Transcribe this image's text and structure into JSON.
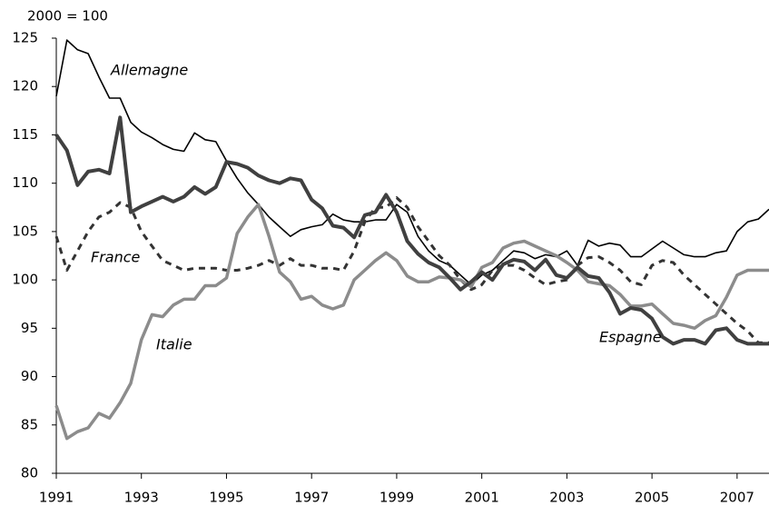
{
  "chart_data": {
    "type": "line",
    "subtitle": "2000 = 100",
    "x": [
      1991,
      1991.25,
      1991.5,
      1991.75,
      1992,
      1992.25,
      1992.5,
      1992.75,
      1993,
      1993.25,
      1993.5,
      1993.75,
      1994,
      1994.25,
      1994.5,
      1994.75,
      1995,
      1995.25,
      1995.5,
      1995.75,
      1996,
      1996.25,
      1996.5,
      1996.75,
      1997,
      1997.25,
      1997.5,
      1997.75,
      1998,
      1998.25,
      1998.5,
      1998.75,
      1999,
      1999.25,
      1999.5,
      1999.75,
      2000,
      2000.25,
      2000.5,
      2000.75,
      2001,
      2001.25,
      2001.5,
      2001.75,
      2002,
      2002.25,
      2002.5,
      2002.75,
      2003,
      2003.25,
      2003.5,
      2003.75,
      2004,
      2004.25,
      2004.5,
      2004.75,
      2005,
      2005.25,
      2005.5,
      2005.75,
      2006,
      2006.25,
      2006.5,
      2006.75,
      2007,
      2007.25,
      2007.5,
      2007.75
    ],
    "series": [
      {
        "name": "Allemagne",
        "color": "#000000",
        "width": 1.6,
        "dash": false,
        "values": [
          119,
          124.8,
          123.8,
          123.4,
          121,
          118.8,
          118.8,
          116.3,
          115.3,
          114.7,
          114,
          113.5,
          113.3,
          115.2,
          114.5,
          114.3,
          112.3,
          110.5,
          109,
          107.8,
          106.5,
          105.5,
          104.5,
          105.2,
          105.5,
          105.7,
          106.8,
          106.2,
          106,
          106,
          106.2,
          106.2,
          107.8,
          107,
          104.5,
          103,
          102,
          101.5,
          100.5,
          99.5,
          100.5,
          101,
          102,
          103,
          102.8,
          102.2,
          102.6,
          102.4,
          103,
          101.5,
          104.1,
          103.5,
          103.8,
          103.6,
          102.4,
          102.4,
          103.2,
          104,
          103.3,
          102.6,
          102.4,
          102.4,
          102.8,
          103,
          105,
          106,
          106.3,
          107.3
        ]
      },
      {
        "name": "France",
        "color": "#333333",
        "width": 3,
        "dash": true,
        "values": [
          104.5,
          101,
          103,
          105,
          106.5,
          107,
          108,
          107.5,
          105,
          103.5,
          102,
          101.5,
          101,
          101.2,
          101.2,
          101.2,
          101,
          101,
          101.2,
          101.5,
          102,
          101.5,
          102.2,
          101.5,
          101.5,
          101.2,
          101.2,
          101,
          103,
          106,
          107.5,
          107.5,
          108.5,
          107.5,
          105.5,
          104,
          102.5,
          101.5,
          100,
          99,
          99.5,
          101,
          101.5,
          101.5,
          101,
          100.2,
          99.5,
          99.8,
          100,
          101.5,
          102.3,
          102.4,
          101.8,
          101,
          99.8,
          99.5,
          101.5,
          102,
          101.8,
          100.5,
          99.5,
          98.5,
          97.5,
          96.5,
          95.5,
          94.7,
          93.5,
          93.5
        ]
      },
      {
        "name": "Italie",
        "color": "#8c8c8c",
        "width": 3.5,
        "dash": false,
        "values": [
          87,
          83.6,
          84.3,
          84.7,
          86.2,
          85.7,
          87.3,
          89.3,
          93.8,
          96.4,
          96.2,
          97.4,
          98,
          98,
          99.4,
          99.4,
          100.2,
          104.8,
          106.5,
          107.8,
          104.5,
          100.8,
          99.8,
          98,
          98.3,
          97.4,
          97,
          97.4,
          100,
          101,
          102,
          102.8,
          102,
          100.4,
          99.8,
          99.8,
          100.3,
          100.2,
          100,
          99.3,
          101.3,
          101.8,
          103.3,
          103.8,
          104,
          103.5,
          103,
          102.5,
          101.8,
          101,
          99.8,
          99.6,
          99.4,
          98.5,
          97.3,
          97.3,
          97.5,
          96.5,
          95.5,
          95.3,
          95,
          95.8,
          96.3,
          98.2,
          100.5,
          101,
          101,
          101
        ]
      },
      {
        "name": "Espagne",
        "color": "#404040",
        "width": 4,
        "dash": false,
        "values": [
          115,
          113.4,
          109.8,
          111.2,
          111.4,
          111,
          116.8,
          107,
          107.6,
          108.1,
          108.6,
          108.1,
          108.6,
          109.6,
          108.9,
          109.6,
          112.2,
          112,
          111.6,
          110.8,
          110.3,
          110,
          110.5,
          110.3,
          108.3,
          107.4,
          105.6,
          105.4,
          104.4,
          106.7,
          107,
          108.8,
          107,
          104,
          102.7,
          101.8,
          101.3,
          100.2,
          99,
          99.8,
          100.8,
          100,
          101.6,
          102.1,
          101.9,
          101,
          102.1,
          100.5,
          100.2,
          101.3,
          100.4,
          100.2,
          98.7,
          96.5,
          97.1,
          96.9,
          96,
          94.1,
          93.4,
          93.8,
          93.8,
          93.4,
          94.8,
          95,
          93.8,
          93.4,
          93.4,
          93.4
        ]
      }
    ],
    "xlim": [
      1991,
      2007.75
    ],
    "xticks": [
      1991,
      1993,
      1995,
      1997,
      1999,
      2001,
      2003,
      2005,
      2007
    ],
    "ylim": [
      80,
      125
    ],
    "yticks": [
      80,
      85,
      90,
      95,
      100,
      105,
      110,
      115,
      120,
      125
    ]
  }
}
